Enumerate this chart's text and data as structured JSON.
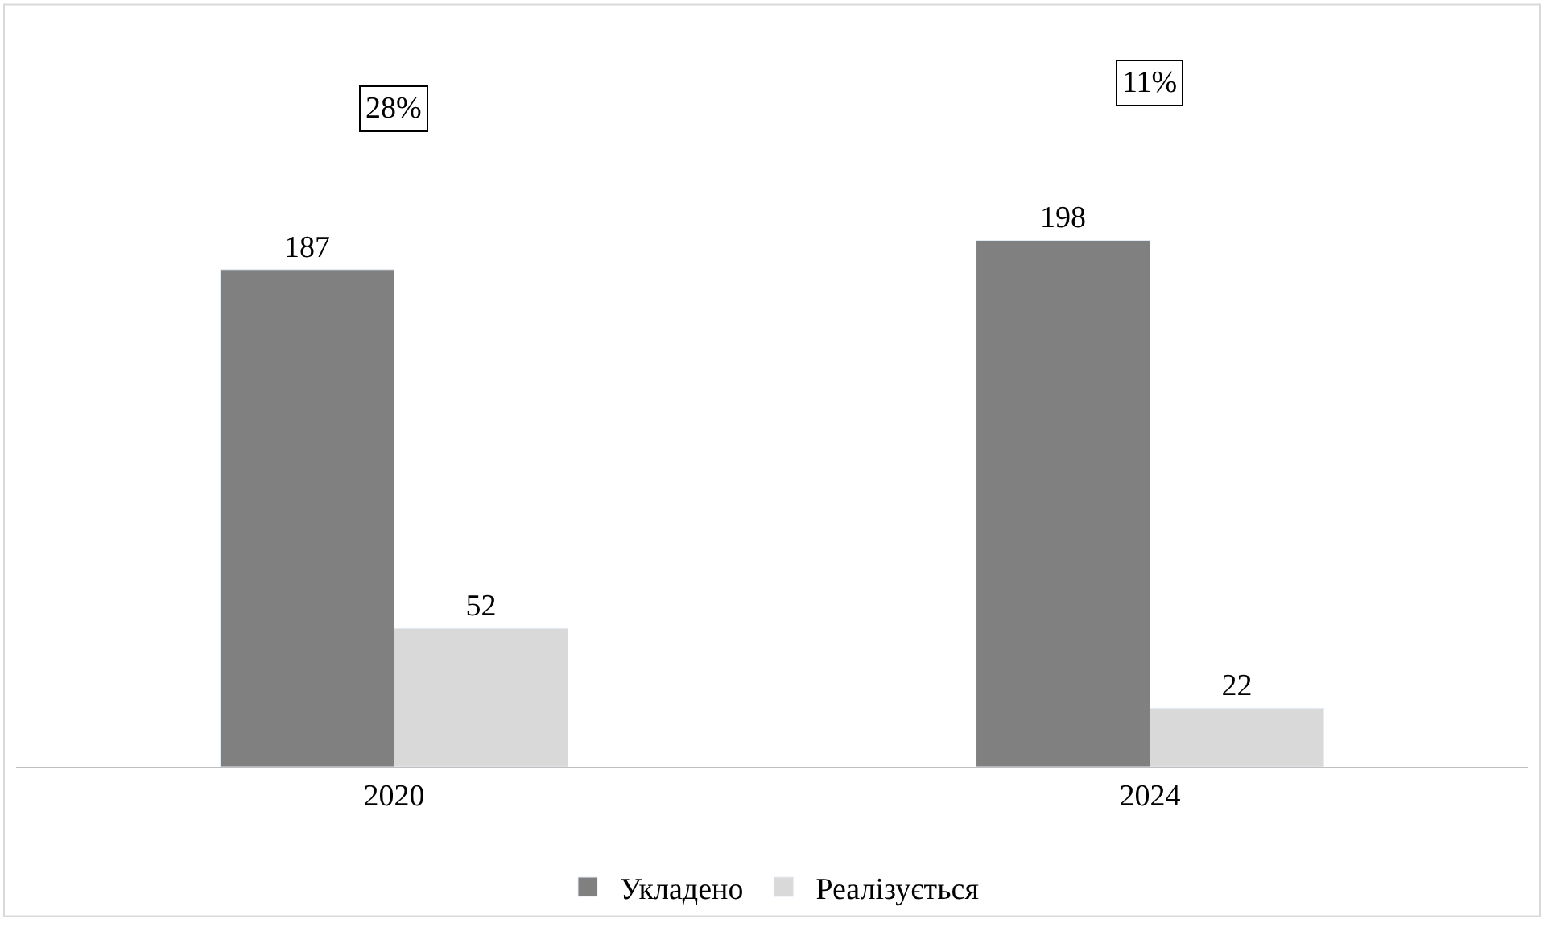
{
  "chart_data": {
    "type": "bar",
    "categories": [
      "2020",
      "2024"
    ],
    "series": [
      {
        "name": "Укладено",
        "color": "#808080",
        "values": [
          187,
          198
        ]
      },
      {
        "name": "Реалізується",
        "color": "#d9d9d9",
        "values": [
          52,
          22
        ]
      }
    ],
    "data_labels": true,
    "annotations": [
      "28%",
      "11%"
    ],
    "legend": "bottom"
  }
}
